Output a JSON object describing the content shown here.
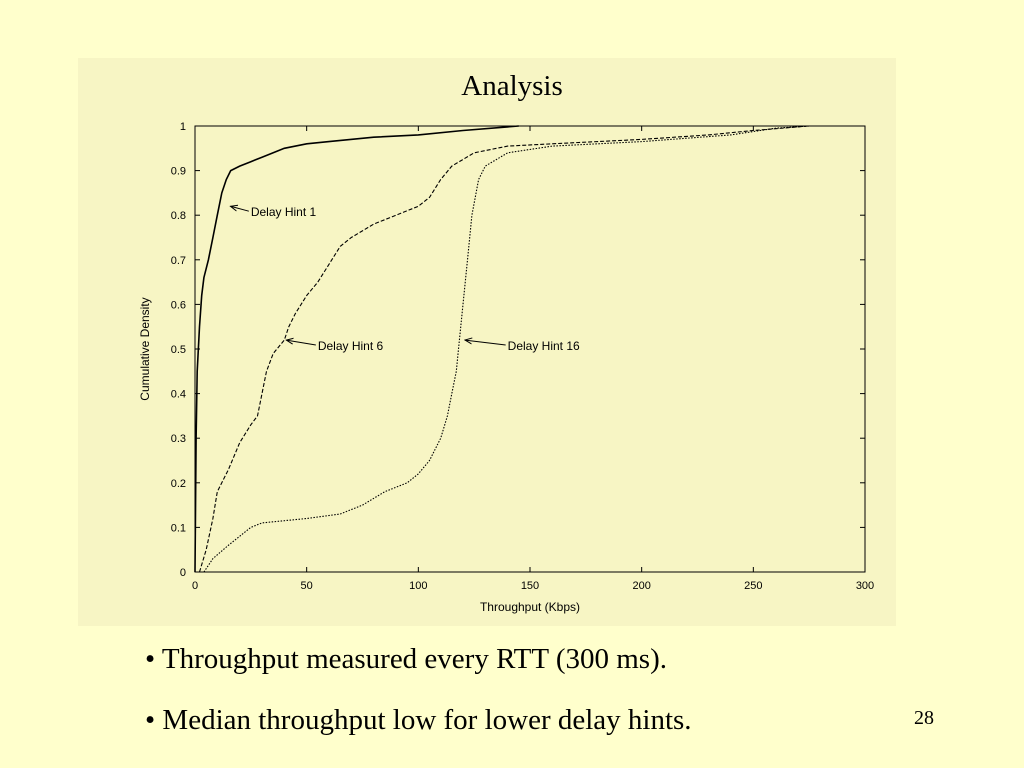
{
  "slide": {
    "bullets": [
      "Throughput measured every RTT (300 ms).",
      "Median throughput low for lower delay hints."
    ],
    "slide_number": "28"
  },
  "chart_data": {
    "type": "line",
    "title": "Analysis",
    "xlabel": "Throughput (Kbps)",
    "ylabel": "Cumulative Density",
    "xlim": [
      0,
      300
    ],
    "ylim": [
      0,
      1
    ],
    "x_ticks": [
      0,
      50,
      100,
      150,
      200,
      250,
      300
    ],
    "y_ticks": [
      0,
      0.1,
      0.2,
      0.3,
      0.4,
      0.5,
      0.6,
      0.7,
      0.8,
      0.9,
      1
    ],
    "x_tick_labels": [
      "0",
      "50",
      "100",
      "150",
      "200",
      "250",
      "300"
    ],
    "y_tick_labels": [
      "0",
      "0.1",
      "0.2",
      "0.3",
      "0.4",
      "0.5",
      "0.6",
      "0.7",
      "0.8",
      "0.9",
      "1"
    ],
    "grid": false,
    "series": [
      {
        "name": "Delay Hint 1",
        "style": "solid",
        "points": [
          [
            0,
            0
          ],
          [
            0.5,
            0.3
          ],
          [
            1,
            0.45
          ],
          [
            2,
            0.55
          ],
          [
            3,
            0.62
          ],
          [
            4,
            0.66
          ],
          [
            6,
            0.7
          ],
          [
            8,
            0.75
          ],
          [
            10,
            0.8
          ],
          [
            12,
            0.85
          ],
          [
            14,
            0.88
          ],
          [
            16,
            0.9
          ],
          [
            20,
            0.91
          ],
          [
            25,
            0.92
          ],
          [
            30,
            0.93
          ],
          [
            35,
            0.94
          ],
          [
            40,
            0.95
          ],
          [
            50,
            0.96
          ],
          [
            60,
            0.965
          ],
          [
            80,
            0.975
          ],
          [
            100,
            0.98
          ],
          [
            120,
            0.99
          ],
          [
            145,
            1.0
          ]
        ]
      },
      {
        "name": "Delay Hint 6",
        "style": "dashed",
        "points": [
          [
            2,
            0
          ],
          [
            5,
            0.05
          ],
          [
            8,
            0.12
          ],
          [
            10,
            0.18
          ],
          [
            15,
            0.23
          ],
          [
            20,
            0.29
          ],
          [
            25,
            0.33
          ],
          [
            28,
            0.35
          ],
          [
            30,
            0.4
          ],
          [
            32,
            0.45
          ],
          [
            35,
            0.49
          ],
          [
            40,
            0.52
          ],
          [
            42,
            0.55
          ],
          [
            45,
            0.58
          ],
          [
            50,
            0.62
          ],
          [
            55,
            0.65
          ],
          [
            60,
            0.69
          ],
          [
            65,
            0.73
          ],
          [
            70,
            0.75
          ],
          [
            80,
            0.78
          ],
          [
            90,
            0.8
          ],
          [
            100,
            0.82
          ],
          [
            105,
            0.84
          ],
          [
            110,
            0.88
          ],
          [
            115,
            0.91
          ],
          [
            125,
            0.94
          ],
          [
            140,
            0.955
          ],
          [
            160,
            0.96
          ],
          [
            200,
            0.97
          ],
          [
            230,
            0.98
          ],
          [
            250,
            0.99
          ],
          [
            275,
            1.0
          ]
        ]
      },
      {
        "name": "Delay Hint 16",
        "style": "dotted",
        "points": [
          [
            4,
            0
          ],
          [
            8,
            0.03
          ],
          [
            15,
            0.06
          ],
          [
            25,
            0.1
          ],
          [
            30,
            0.11
          ],
          [
            50,
            0.12
          ],
          [
            65,
            0.13
          ],
          [
            75,
            0.15
          ],
          [
            85,
            0.18
          ],
          [
            95,
            0.2
          ],
          [
            100,
            0.22
          ],
          [
            105,
            0.25
          ],
          [
            110,
            0.3
          ],
          [
            113,
            0.35
          ],
          [
            115,
            0.4
          ],
          [
            117,
            0.45
          ],
          [
            118,
            0.5
          ],
          [
            120,
            0.6
          ],
          [
            122,
            0.7
          ],
          [
            124,
            0.8
          ],
          [
            127,
            0.88
          ],
          [
            130,
            0.91
          ],
          [
            140,
            0.94
          ],
          [
            160,
            0.955
          ],
          [
            200,
            0.965
          ],
          [
            240,
            0.98
          ],
          [
            260,
            0.995
          ],
          [
            275,
            1.0
          ]
        ]
      }
    ],
    "annotations": [
      {
        "text": "Delay Hint 1",
        "target": [
          15,
          0.82
        ],
        "label_at": [
          25,
          0.8
        ]
      },
      {
        "text": "Delay Hint 6",
        "target": [
          40,
          0.52
        ],
        "label_at": [
          55,
          0.5
        ]
      },
      {
        "text": "Delay Hint 16",
        "target": [
          120,
          0.52
        ],
        "label_at": [
          140,
          0.5
        ]
      }
    ]
  }
}
